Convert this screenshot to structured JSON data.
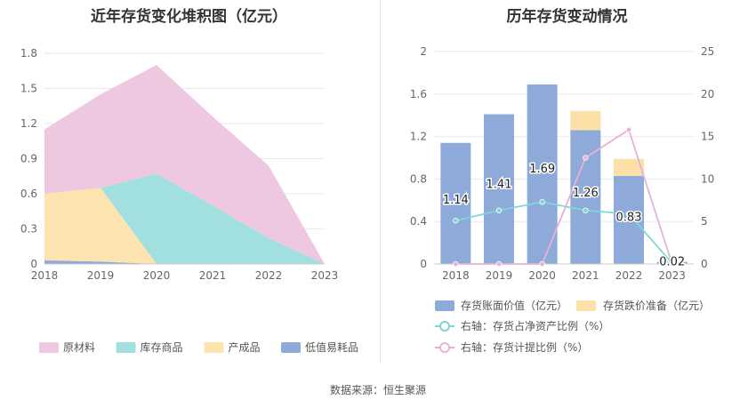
{
  "left_chart": {
    "title": "近年存货变化堆积图（亿元）",
    "chart_data": {
      "type": "area",
      "stacked": true,
      "x": [
        "2018",
        "2019",
        "2020",
        "2021",
        "2022",
        "2023"
      ],
      "ylim": [
        0,
        1.8
      ],
      "yticks": [
        "0",
        "0.3",
        "0.6",
        "0.9",
        "1.2",
        "1.5",
        "1.8"
      ],
      "grid": true,
      "legend_position": "bottom",
      "series": [
        {
          "name": "低值易耗品",
          "color": "#8eaad9",
          "values": [
            0.03,
            0.02,
            0.0,
            0.0,
            0.0,
            0.0
          ]
        },
        {
          "name": "产成品",
          "color": "#fde3b0",
          "values": [
            0.57,
            0.63,
            0.0,
            0.0,
            0.0,
            0.0
          ]
        },
        {
          "name": "库存商品",
          "color": "#a1e0df",
          "values": [
            0.0,
            0.0,
            0.77,
            0.5,
            0.22,
            0.0
          ]
        },
        {
          "name": "原材料",
          "color": "#eec7e1",
          "values": [
            0.55,
            0.8,
            0.93,
            0.76,
            0.62,
            0.0
          ]
        }
      ],
      "legend_order": [
        "原材料",
        "库存商品",
        "产成品",
        "低值易耗品"
      ]
    }
  },
  "right_chart": {
    "title": "历年存货变动情况",
    "chart_data": {
      "type": "bar",
      "categories": [
        "2018",
        "2019",
        "2020",
        "2021",
        "2022",
        "2023"
      ],
      "ylim_left": [
        0,
        2
      ],
      "yticks_left": [
        "0",
        "0.4",
        "0.8",
        "1.2",
        "1.6",
        "2"
      ],
      "ylim_right": [
        0,
        25
      ],
      "yticks_right": [
        "0",
        "5",
        "10",
        "15",
        "20",
        "25"
      ],
      "grid": true,
      "legend_position": "bottom",
      "bar_series": [
        {
          "name": "存货账面价值（亿元）",
          "color": "#8eaad9",
          "values": [
            1.14,
            1.41,
            1.69,
            1.26,
            0.83,
            0.02
          ],
          "labels": [
            "1.14",
            "1.41",
            "1.69",
            "1.26",
            "0.83",
            "0.02"
          ]
        },
        {
          "name": "存货跌价准备（亿元）",
          "color": "#fde0a8",
          "values": [
            0,
            0,
            0,
            0.18,
            0.16,
            0
          ]
        }
      ],
      "line_series": [
        {
          "name": "右轴：存货占净资产比例（%）",
          "color": "#7fd6d5",
          "values": [
            5.1,
            6.3,
            7.3,
            6.3,
            5.9,
            0.1
          ]
        },
        {
          "name": "右轴：存货计提比例（%）",
          "color": "#e6b2d8",
          "values": [
            0,
            0,
            0,
            12.5,
            15.8,
            0
          ]
        }
      ]
    }
  },
  "footer": {
    "source": "数据来源：恒生聚源"
  }
}
